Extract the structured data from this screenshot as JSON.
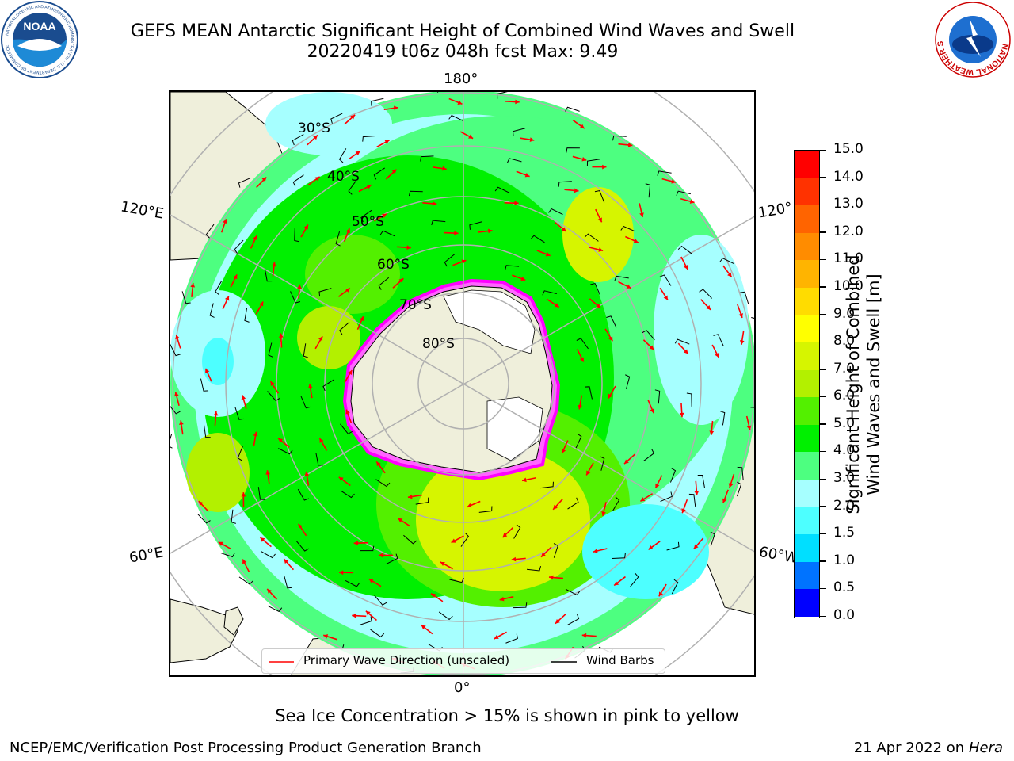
{
  "title": {
    "line1": "GEFS MEAN Antarctic Significant Height of Combined Wind Waves and Swell",
    "line2": "20220419 t06z 048h fcst   Max: 9.49"
  },
  "map": {
    "lon_labels": {
      "top": "180°",
      "bottom": "0°",
      "left_upper": "120°E",
      "left_lower": "60°E",
      "right_upper": "120°",
      "right_lower": "60°W"
    },
    "lat_labels": [
      "30°S",
      "40°S",
      "50°S",
      "60°S",
      "70°S",
      "80°S"
    ]
  },
  "colorbar": {
    "title_line1": "Significant Height of Combined",
    "title_line2": "Wind Waves and Swell [m]",
    "ticks": [
      "0.0",
      "0.5",
      "1.0",
      "1.5",
      "2.0",
      "3.0",
      "4.0",
      "5.0",
      "6.0",
      "7.0",
      "8.0",
      "9.0",
      "10.0",
      "11.0",
      "12.0",
      "13.0",
      "14.0",
      "15.0"
    ],
    "colors": [
      "#0000ff",
      "#0073ff",
      "#00dfff",
      "#4dffff",
      "#a6ffff",
      "#4dff80",
      "#00f000",
      "#53f000",
      "#b3f000",
      "#d6f500",
      "#ffff00",
      "#ffdc00",
      "#ffb400",
      "#ff8c00",
      "#ff6400",
      "#ff3200",
      "#ff0000"
    ]
  },
  "legend": {
    "wave_label": "Primary Wave Direction (unscaled)",
    "wind_label": "Wind Barbs",
    "wave_color": "#ff0000",
    "wind_color": "#000000"
  },
  "footer": {
    "note": "Sea Ice Concentration > 15% is shown in pink to yellow",
    "org": "NCEP/EMC/Verification Post Processing Product Generation Branch",
    "date": "21 Apr 2022 on ",
    "host": "Hera"
  },
  "logos": {
    "noaa_text": "NOAA",
    "noaa_ring": "NATIONAL OCEANIC AND ATMOSPHERIC ADMINISTRATION · U.S. DEPARTMENT OF COMMERCE",
    "nws_ring": "NATIONAL WEATHER SERVICE"
  }
}
